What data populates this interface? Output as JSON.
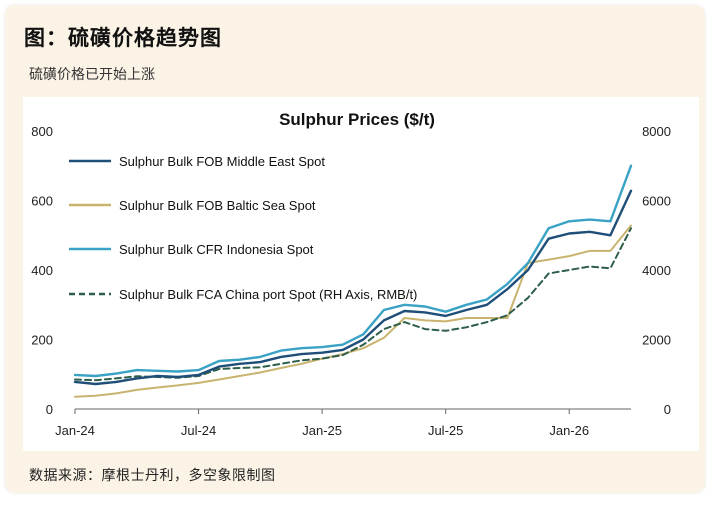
{
  "figure": {
    "title": "图：硫磺价格趋势图",
    "subtitle": "硫磺价格已开始上涨",
    "source": "数据来源：摩根士丹利，多空象限制图"
  },
  "colors": {
    "series_1": "#1f4e79",
    "series_2": "#c9b46f",
    "series_3": "#3aa2c4",
    "series_4": "#2f5f4a"
  },
  "chart_data": {
    "type": "line",
    "title": "Sulphur Prices ($/t)",
    "xlabel": "",
    "ylabel": "",
    "x_ticks": [
      "Jan-24",
      "Jul-24",
      "Jan-25",
      "Jul-25",
      "Jan-26"
    ],
    "xlim": [
      "2024-01",
      "2026-04"
    ],
    "ylim": [
      0,
      800
    ],
    "y_ticks": [
      0,
      200,
      400,
      600,
      800
    ],
    "y2lim": [
      0,
      8000
    ],
    "y2_ticks": [
      0,
      2000,
      4000,
      6000,
      8000
    ],
    "grid": false,
    "legend_position": "top-left",
    "series": [
      {
        "name": "Sulphur Bulk FOB Middle East Spot",
        "axis": "left",
        "style": "solid",
        "points": [
          [
            "2024-01",
            78
          ],
          [
            "2024-02",
            72
          ],
          [
            "2024-03",
            78
          ],
          [
            "2024-04",
            88
          ],
          [
            "2024-05",
            95
          ],
          [
            "2024-06",
            92
          ],
          [
            "2024-07",
            98
          ],
          [
            "2024-08",
            122
          ],
          [
            "2024-09",
            130
          ],
          [
            "2024-10",
            135
          ],
          [
            "2024-11",
            150
          ],
          [
            "2024-12",
            158
          ],
          [
            "2025-01",
            162
          ],
          [
            "2025-02",
            170
          ],
          [
            "2025-03",
            200
          ],
          [
            "2025-04",
            255
          ],
          [
            "2025-05",
            282
          ],
          [
            "2025-06",
            278
          ],
          [
            "2025-07",
            268
          ],
          [
            "2025-08",
            285
          ],
          [
            "2025-09",
            300
          ],
          [
            "2025-10",
            345
          ],
          [
            "2025-11",
            400
          ],
          [
            "2025-12",
            490
          ],
          [
            "2026-01",
            505
          ],
          [
            "2026-02",
            510
          ],
          [
            "2026-03",
            500
          ],
          [
            "2026-04",
            628
          ]
        ]
      },
      {
        "name": "Sulphur Bulk FOB Baltic Sea Spot",
        "axis": "left",
        "style": "solid",
        "points": [
          [
            "2024-01",
            35
          ],
          [
            "2024-02",
            38
          ],
          [
            "2024-03",
            45
          ],
          [
            "2024-04",
            55
          ],
          [
            "2024-05",
            62
          ],
          [
            "2024-06",
            68
          ],
          [
            "2024-07",
            75
          ],
          [
            "2024-08",
            85
          ],
          [
            "2024-09",
            95
          ],
          [
            "2024-10",
            105
          ],
          [
            "2024-11",
            118
          ],
          [
            "2024-12",
            130
          ],
          [
            "2025-01",
            145
          ],
          [
            "2025-02",
            158
          ],
          [
            "2025-03",
            175
          ],
          [
            "2025-04",
            205
          ],
          [
            "2025-05",
            262
          ],
          [
            "2025-06",
            255
          ],
          [
            "2025-07",
            252
          ],
          [
            "2025-08",
            262
          ],
          [
            "2025-09",
            262
          ],
          [
            "2025-10",
            262
          ],
          [
            "2025-11",
            420
          ],
          [
            "2025-12",
            430
          ],
          [
            "2026-01",
            440
          ],
          [
            "2026-02",
            455
          ],
          [
            "2026-03",
            455
          ],
          [
            "2026-04",
            528
          ]
        ]
      },
      {
        "name": "Sulphur Bulk CFR Indonesia Spot",
        "axis": "left",
        "style": "solid",
        "points": [
          [
            "2024-01",
            98
          ],
          [
            "2024-02",
            95
          ],
          [
            "2024-03",
            102
          ],
          [
            "2024-04",
            112
          ],
          [
            "2024-05",
            110
          ],
          [
            "2024-06",
            108
          ],
          [
            "2024-07",
            112
          ],
          [
            "2024-08",
            138
          ],
          [
            "2024-09",
            142
          ],
          [
            "2024-10",
            150
          ],
          [
            "2024-11",
            168
          ],
          [
            "2024-12",
            175
          ],
          [
            "2025-01",
            178
          ],
          [
            "2025-02",
            185
          ],
          [
            "2025-03",
            215
          ],
          [
            "2025-04",
            285
          ],
          [
            "2025-05",
            300
          ],
          [
            "2025-06",
            295
          ],
          [
            "2025-07",
            280
          ],
          [
            "2025-08",
            300
          ],
          [
            "2025-09",
            315
          ],
          [
            "2025-10",
            360
          ],
          [
            "2025-11",
            420
          ],
          [
            "2025-12",
            520
          ],
          [
            "2026-01",
            540
          ],
          [
            "2026-02",
            545
          ],
          [
            "2026-03",
            540
          ],
          [
            "2026-04",
            700
          ]
        ]
      },
      {
        "name": "Sulphur Bulk FCA China port Spot (RH Axis, RMB/t)",
        "axis": "right",
        "style": "dashed",
        "points": [
          [
            "2024-01",
            850
          ],
          [
            "2024-02",
            830
          ],
          [
            "2024-03",
            880
          ],
          [
            "2024-04",
            940
          ],
          [
            "2024-05",
            920
          ],
          [
            "2024-06",
            900
          ],
          [
            "2024-07",
            950
          ],
          [
            "2024-08",
            1150
          ],
          [
            "2024-09",
            1180
          ],
          [
            "2024-10",
            1200
          ],
          [
            "2024-11",
            1300
          ],
          [
            "2024-12",
            1400
          ],
          [
            "2025-01",
            1450
          ],
          [
            "2025-02",
            1550
          ],
          [
            "2025-03",
            1850
          ],
          [
            "2025-04",
            2300
          ],
          [
            "2025-05",
            2500
          ],
          [
            "2025-06",
            2300
          ],
          [
            "2025-07",
            2250
          ],
          [
            "2025-08",
            2350
          ],
          [
            "2025-09",
            2500
          ],
          [
            "2025-10",
            2700
          ],
          [
            "2025-11",
            3200
          ],
          [
            "2025-12",
            3900
          ],
          [
            "2026-01",
            4000
          ],
          [
            "2026-02",
            4100
          ],
          [
            "2026-03",
            4050
          ],
          [
            "2026-04",
            5200
          ]
        ]
      }
    ]
  }
}
